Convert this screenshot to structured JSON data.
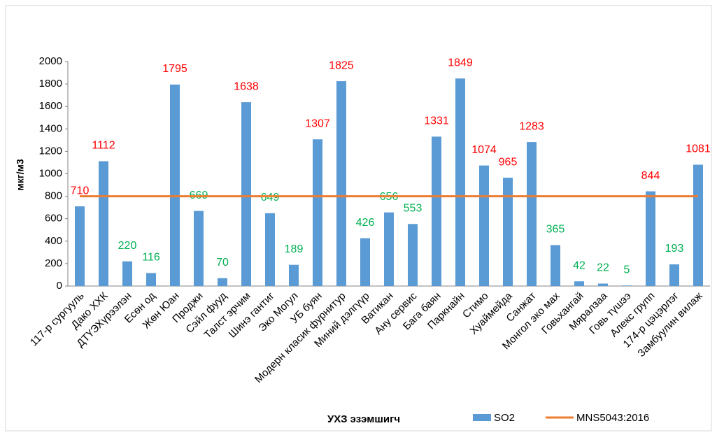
{
  "chart_data": {
    "type": "bar",
    "categories": [
      "117-р сургууль",
      "Дако ХХК",
      "ДТҮЭХүрээлэн",
      "Есөн од",
      "Жөн Юан",
      "Проджи",
      "Сэйл фууд",
      "Талст эрчим",
      "Шинэ гантиг",
      "Эко Могул",
      "УБ буян",
      "Модерн класик фурнитур",
      "Миний дэлгүүр",
      "Ватикан",
      "Ану сервис",
      "Бага баян",
      "Паркнайн",
      "Стимо",
      "Хуаймейда",
      "Санжат",
      "Монгол эко мах",
      "Говьхангай",
      "Мяралзаа",
      "Говь түшээ",
      "Алекс групп",
      "174-р цэцэрлэг",
      "Замбуулин вилаж"
    ],
    "series": [
      {
        "name": "SO2",
        "type": "bar",
        "color": "#5b9bd5",
        "values": [
          710,
          1112,
          220,
          116,
          1795,
          669,
          70,
          1638,
          649,
          189,
          1307,
          1825,
          426,
          656,
          553,
          1331,
          1849,
          1074,
          965,
          1283,
          365,
          42,
          22,
          5,
          844,
          193,
          1081
        ],
        "label_colors": [
          "#ff0000",
          "#ff0000",
          "#00b050",
          "#00b050",
          "#ff0000",
          "#00b050",
          "#00b050",
          "#ff0000",
          "#00b050",
          "#00b050",
          "#ff0000",
          "#ff0000",
          "#00b050",
          "#00b050",
          "#00b050",
          "#ff0000",
          "#ff0000",
          "#ff0000",
          "#ff0000",
          "#ff0000",
          "#00b050",
          "#00b050",
          "#00b050",
          "#00b050",
          "#ff0000",
          "#00b050",
          "#ff0000"
        ]
      },
      {
        "name": "MNS5043:2016",
        "type": "line",
        "color": "#ed7d31",
        "values": [
          800,
          800,
          800,
          800,
          800,
          800,
          800,
          800,
          800,
          800,
          800,
          800,
          800,
          800,
          800,
          800,
          800,
          800,
          800,
          800,
          800,
          800,
          800,
          800,
          800,
          800,
          800
        ]
      }
    ],
    "y_label": "мкг/м3",
    "x_label": "УХЗ эзэмшигч",
    "ylim": [
      0,
      2000
    ],
    "yticks": [
      0,
      200,
      400,
      600,
      800,
      1000,
      1200,
      1400,
      1600,
      1800,
      2000
    ],
    "legend": "bottom"
  }
}
